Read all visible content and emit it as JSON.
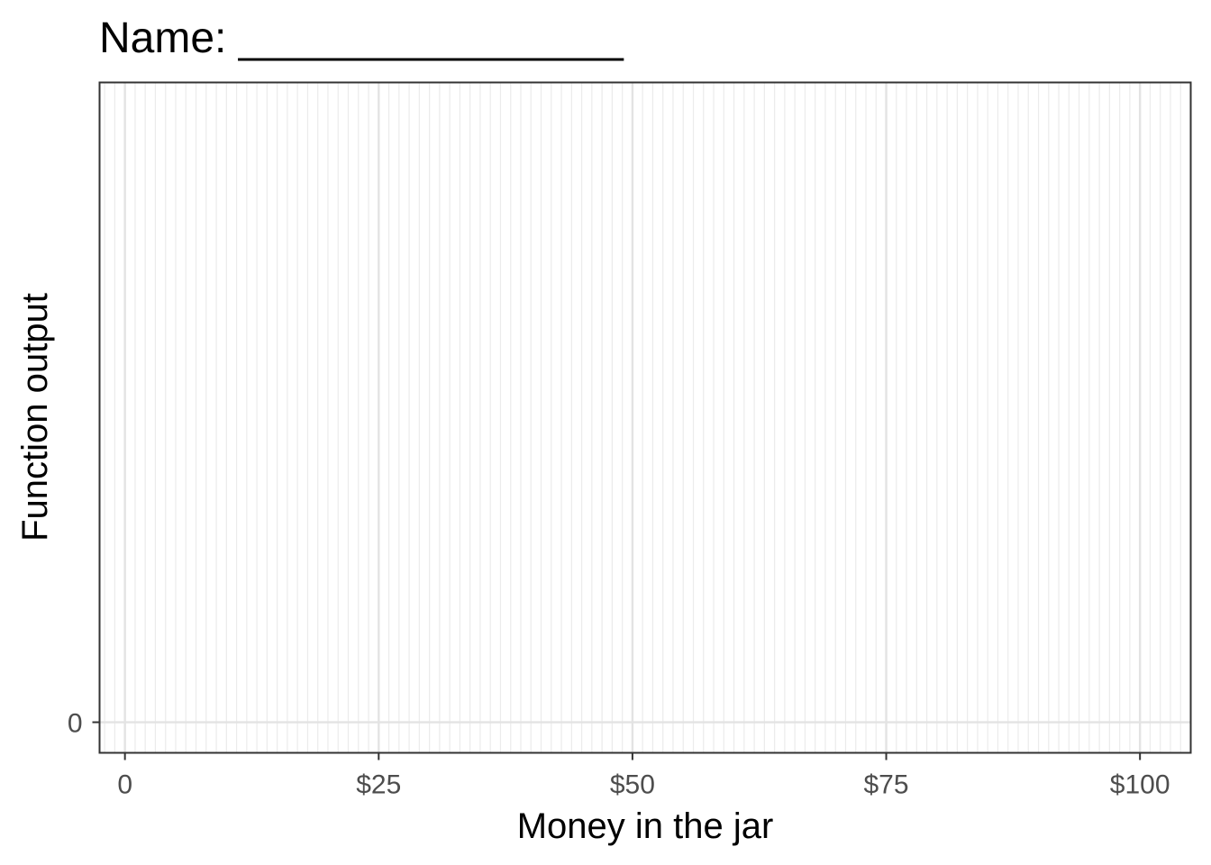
{
  "chart_data": {
    "type": "line",
    "title": "Name: ________________",
    "xlabel": "Money in the jar",
    "ylabel": "Function output",
    "xlim": [
      -2.5,
      105
    ],
    "ylim": [
      -1.1,
      23
    ],
    "x_ticks": [
      {
        "value": 0,
        "label": "0"
      },
      {
        "value": 25,
        "label": "$25"
      },
      {
        "value": 50,
        "label": "$50"
      },
      {
        "value": 75,
        "label": "$75"
      },
      {
        "value": 100,
        "label": "$100"
      }
    ],
    "y_ticks": [
      {
        "value": 0,
        "label": "0"
      }
    ],
    "x_minor_step": 1,
    "grid": true,
    "series": []
  }
}
